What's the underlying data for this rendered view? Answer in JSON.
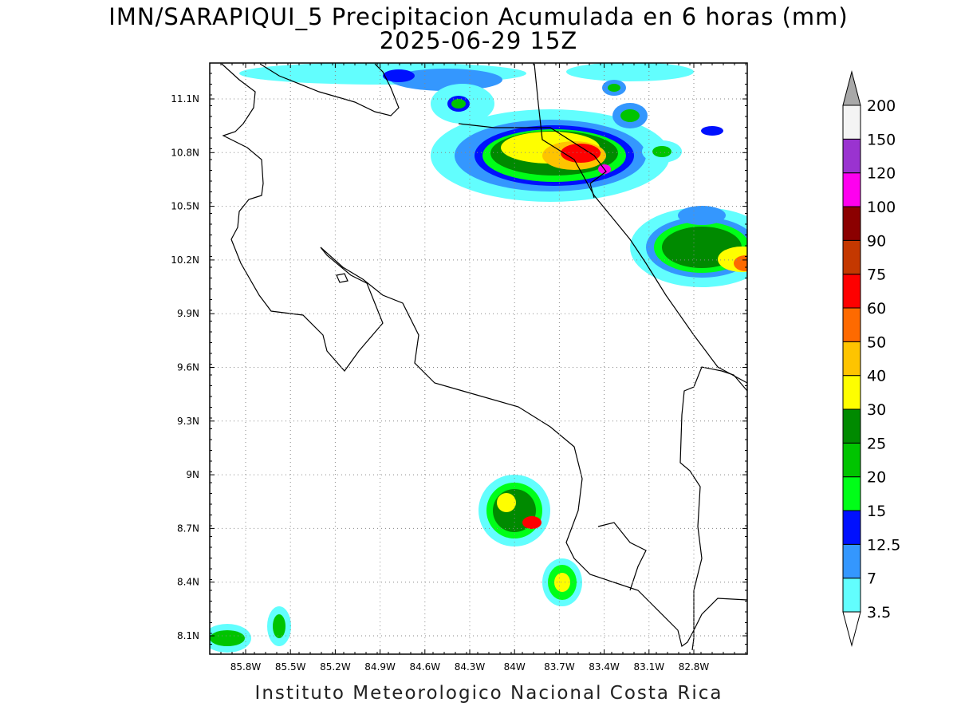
{
  "title": {
    "line1": "IMN/SARAPIQUI_5 Precipitacion Acumulada en 6 horas (mm)",
    "line2": "2025-06-29 15Z"
  },
  "footer": "Instituto Meteorologico Nacional Costa Rica",
  "axes": {
    "x_ticks": [
      "85.8W",
      "85.5W",
      "85.2W",
      "84.9W",
      "84.6W",
      "84.3W",
      "84W",
      "83.7W",
      "83.4W",
      "83.1W",
      "82.8W"
    ],
    "y_ticks": [
      "11.1N",
      "10.8N",
      "10.5N",
      "10.2N",
      "9.9N",
      "9.6N",
      "9.3N",
      "9N",
      "8.7N",
      "8.4N",
      "8.1N"
    ],
    "grid": "dotted"
  },
  "colorbar": {
    "levels": [
      {
        "label": "3.5",
        "color": "#62fefe"
      },
      {
        "label": "7",
        "color": "#3497fe"
      },
      {
        "label": "12.5",
        "color": "#0010fe"
      },
      {
        "label": "15",
        "color": "#00fe18"
      },
      {
        "label": "20",
        "color": "#00c400"
      },
      {
        "label": "25",
        "color": "#008a00"
      },
      {
        "label": "30",
        "color": "#fefe00"
      },
      {
        "label": "40",
        "color": "#fec400"
      },
      {
        "label": "50",
        "color": "#fe6a00"
      },
      {
        "label": "60",
        "color": "#fe0000"
      },
      {
        "label": "75",
        "color": "#c43800"
      },
      {
        "label": "90",
        "color": "#8b0000"
      },
      {
        "label": "100",
        "color": "#fe00ef"
      },
      {
        "label": "120",
        "color": "#9a33d0"
      },
      {
        "label": "150",
        "color": "#f4f4f4"
      },
      {
        "label": "200",
        "color": "#a8a8a8"
      }
    ]
  }
}
